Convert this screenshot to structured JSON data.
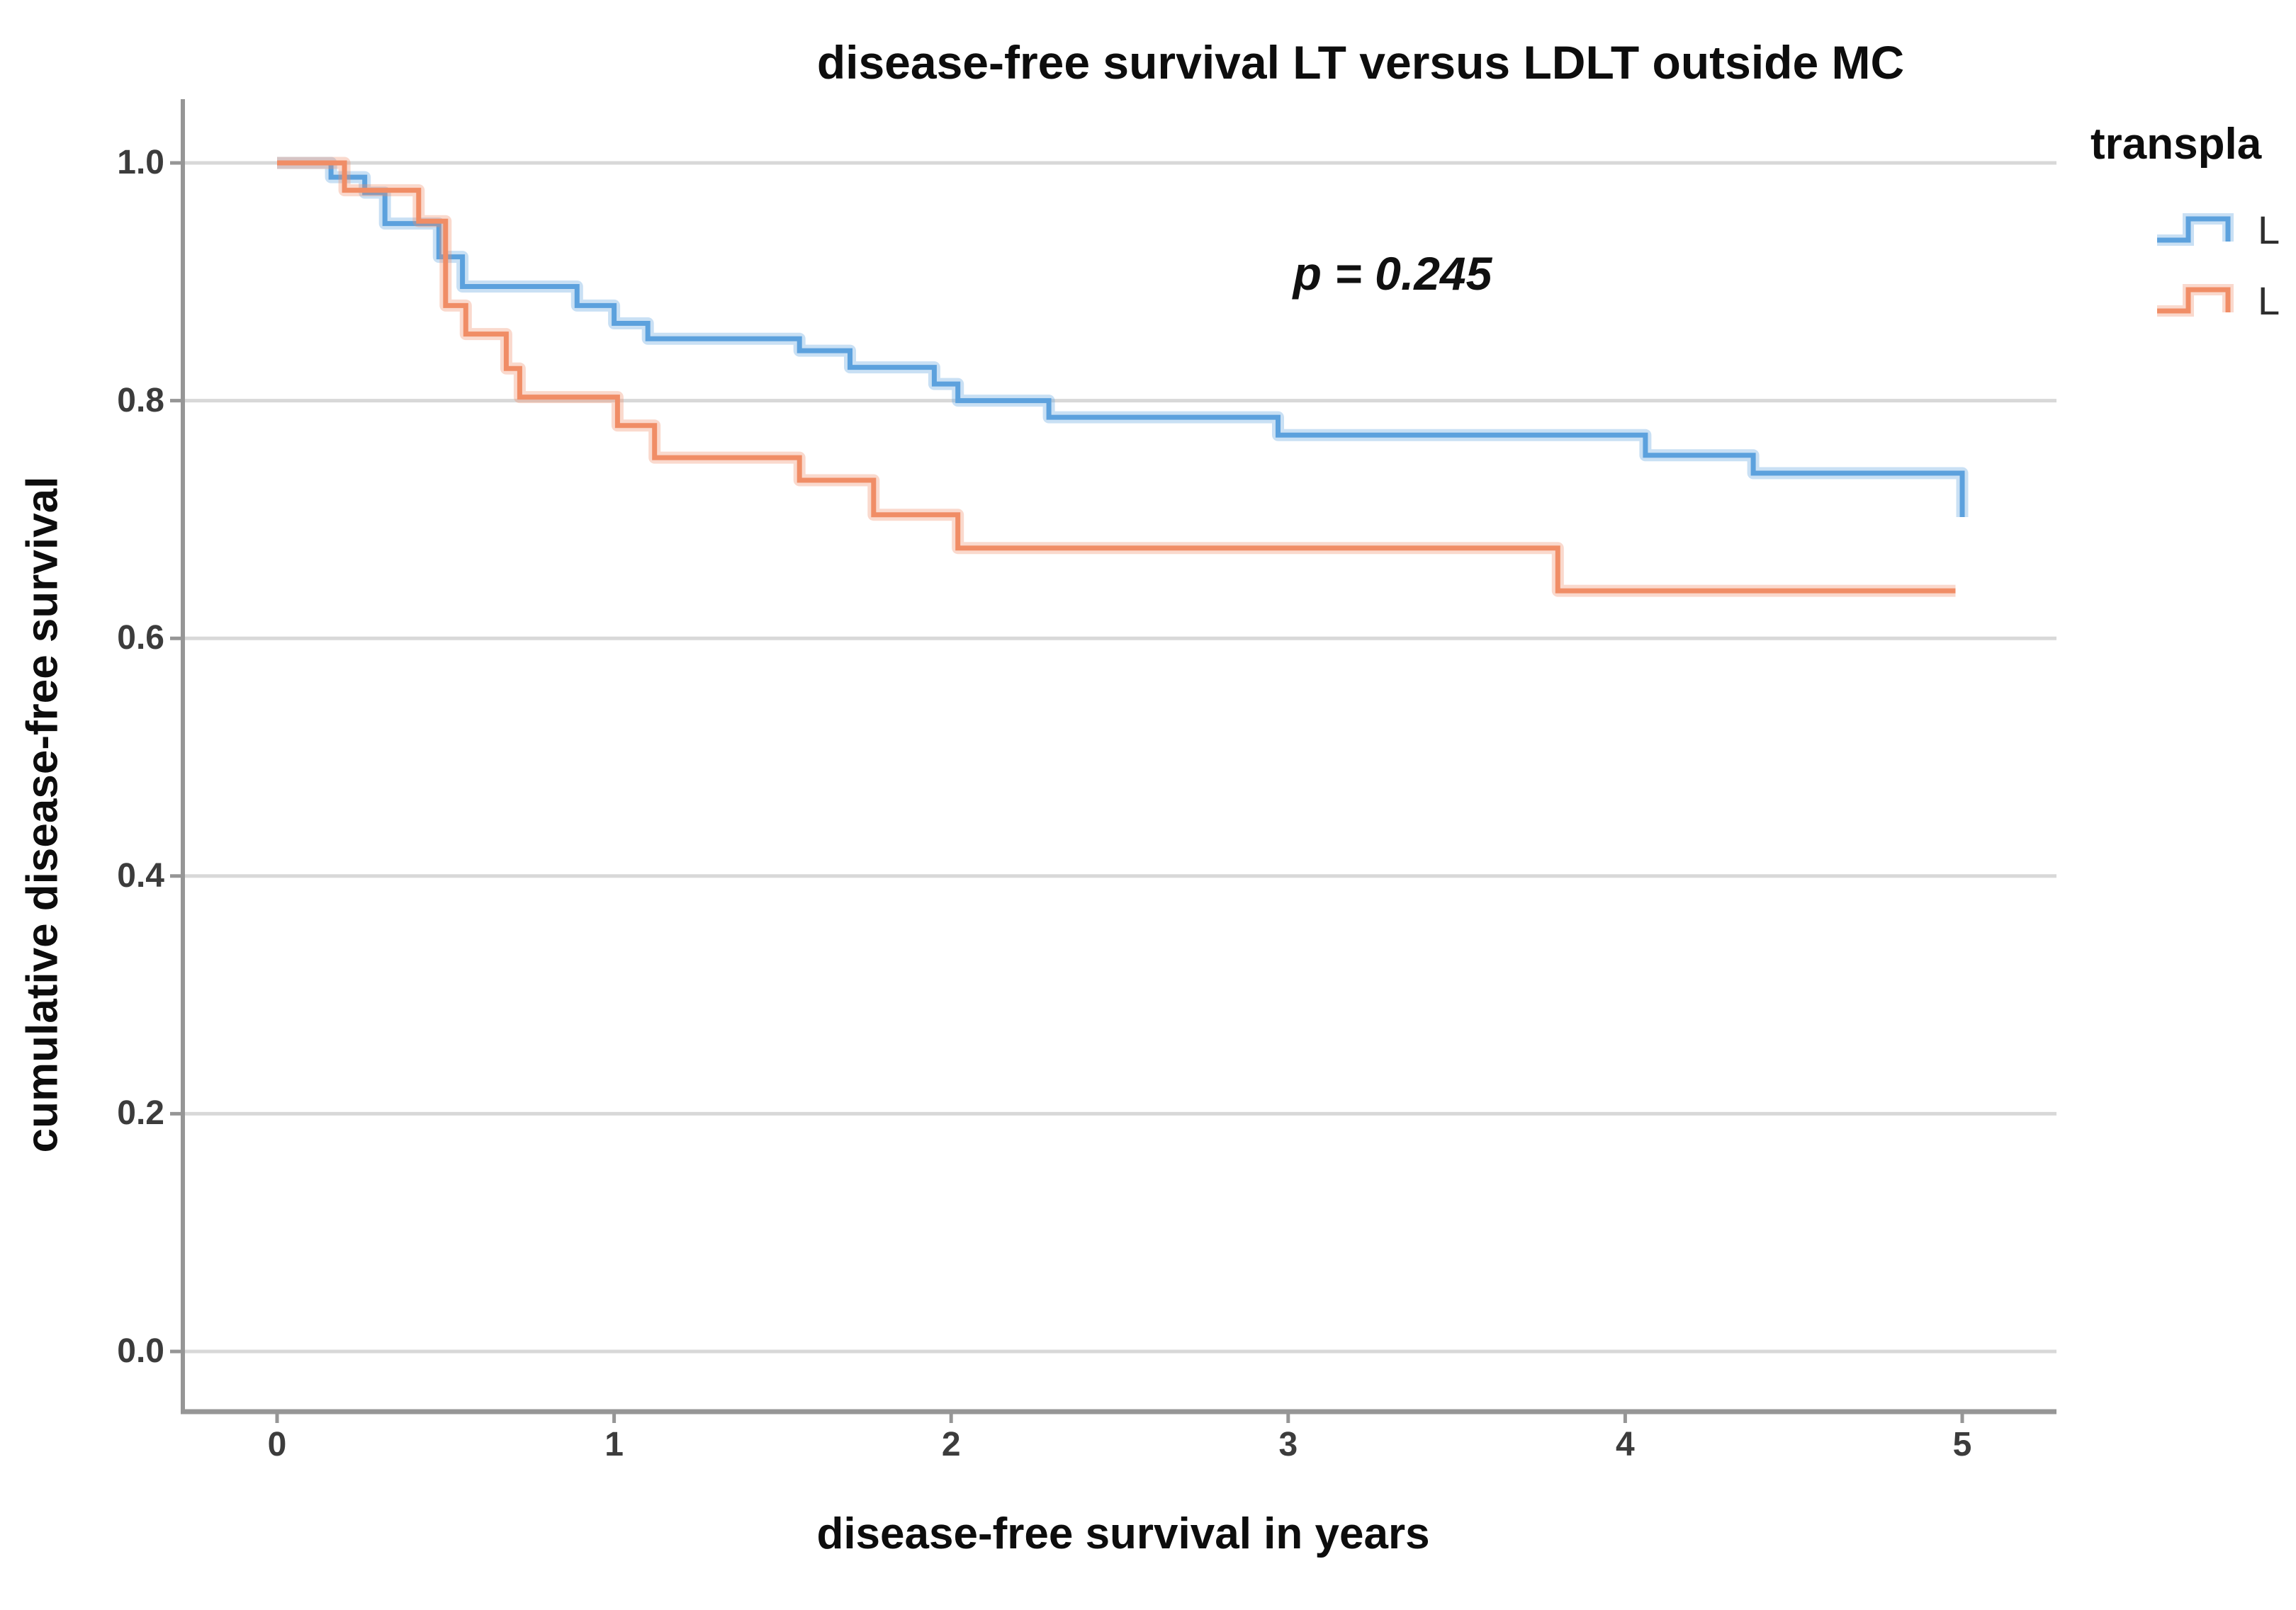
{
  "title": "disease-free survival LT versus LDLT outside MC",
  "annotation": {
    "p_value_label": "p = 0.245"
  },
  "axes": {
    "x": {
      "label": "disease-free survival in years",
      "tick_labels": [
        "0",
        "1",
        "2",
        "3",
        "4",
        "5"
      ],
      "tick_values": [
        0,
        1,
        2,
        3,
        4,
        5
      ]
    },
    "y": {
      "label": "cumulative disease-free survival",
      "tick_labels": [
        "0.0",
        "0.2",
        "0.4",
        "0.6",
        "0.8",
        "1.0"
      ],
      "tick_values": [
        0.0,
        0.2,
        0.4,
        0.6,
        0.8,
        1.0
      ]
    }
  },
  "legend": {
    "title": "transpla",
    "entries": [
      {
        "label": "L",
        "color": "#5CA1DD"
      },
      {
        "label": "L",
        "color": "#F08D66"
      }
    ]
  },
  "colors": {
    "lt_line": "#5CA1DD",
    "ldlt_line": "#F08D66",
    "gridline": "#D8D8D8",
    "axis_line": "#969696",
    "background": "#FFFFFF"
  },
  "chart_data": {
    "type": "line",
    "subtype": "kaplan-meier-step",
    "title": "disease-free survival LT versus LDLT outside MC",
    "xlabel": "disease-free survival in years",
    "ylabel": "cumulative disease-free survival",
    "xlim": [
      -0.28,
      5.28
    ],
    "ylim": [
      -0.05,
      1.05
    ],
    "x_ticks": [
      0,
      1,
      2,
      3,
      4,
      5
    ],
    "y_ticks": [
      0.0,
      0.2,
      0.4,
      0.6,
      0.8,
      1.0
    ],
    "grid": "horizontal-only",
    "legend_position": "outside-top-right",
    "p_value": 0.245,
    "series": [
      {
        "name": "LT",
        "color": "#5CA1DD",
        "step_points": [
          [
            0.0,
            1.0
          ],
          [
            0.16,
            0.988
          ],
          [
            0.26,
            0.975
          ],
          [
            0.32,
            0.949
          ],
          [
            0.48,
            0.921
          ],
          [
            0.55,
            0.896
          ],
          [
            0.89,
            0.88
          ],
          [
            1.0,
            0.865
          ],
          [
            1.1,
            0.852
          ],
          [
            1.55,
            0.842
          ],
          [
            1.7,
            0.828
          ],
          [
            1.95,
            0.814
          ],
          [
            2.02,
            0.8
          ],
          [
            2.29,
            0.786
          ],
          [
            2.97,
            0.771
          ],
          [
            4.06,
            0.754
          ],
          [
            4.38,
            0.739
          ],
          [
            5.0,
            0.702
          ]
        ]
      },
      {
        "name": "LDLT",
        "color": "#F08D66",
        "step_points": [
          [
            0.0,
            1.0
          ],
          [
            0.2,
            0.977
          ],
          [
            0.42,
            0.951
          ],
          [
            0.5,
            0.88
          ],
          [
            0.56,
            0.856
          ],
          [
            0.68,
            0.827
          ],
          [
            0.72,
            0.803
          ],
          [
            1.01,
            0.779
          ],
          [
            1.12,
            0.752
          ],
          [
            1.55,
            0.733
          ],
          [
            1.77,
            0.704
          ],
          [
            2.02,
            0.676
          ],
          [
            3.8,
            0.64
          ],
          [
            4.98,
            0.64
          ]
        ]
      }
    ]
  }
}
